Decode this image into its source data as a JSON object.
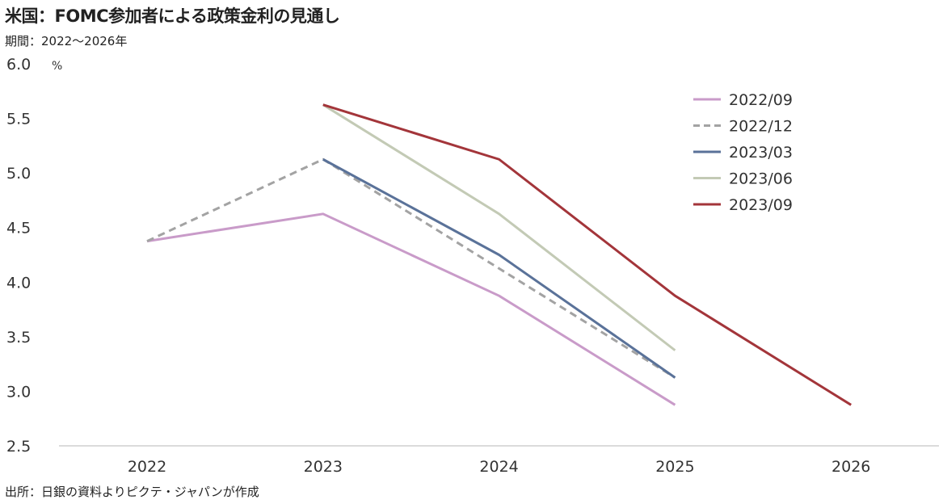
{
  "chart_data": {
    "type": "line",
    "title": "米国：FOMC参加者による政策金利の見通し",
    "subtitle": "期間：2022〜2026年",
    "source": "出所：日銀の資料よりピクテ・ジャパンが作成",
    "ylabel": "%",
    "xlabel": "",
    "ylim": [
      2.5,
      6.0
    ],
    "yticks": [
      "2.5",
      "3.0",
      "3.5",
      "4.0",
      "4.5",
      "5.0",
      "5.5",
      "6.0"
    ],
    "categories": [
      "2022",
      "2023",
      "2024",
      "2025",
      "2026"
    ],
    "legend_position": "top-right",
    "series": [
      {
        "name": "2022/09",
        "color": "#c99bc9",
        "dash": false,
        "values": [
          4.375,
          4.625,
          3.875,
          2.875,
          null
        ]
      },
      {
        "name": "2022/12",
        "color": "#a3a3a3",
        "dash": true,
        "values": [
          4.375,
          5.125,
          4.125,
          3.125,
          null
        ]
      },
      {
        "name": "2023/03",
        "color": "#5a7299",
        "dash": false,
        "values": [
          null,
          5.125,
          4.25,
          3.125,
          null
        ]
      },
      {
        "name": "2023/06",
        "color": "#c3cab5",
        "dash": false,
        "values": [
          null,
          5.625,
          4.625,
          3.375,
          null
        ]
      },
      {
        "name": "2023/09",
        "color": "#a3353a",
        "dash": false,
        "values": [
          null,
          5.625,
          5.125,
          3.875,
          2.875
        ]
      }
    ]
  }
}
